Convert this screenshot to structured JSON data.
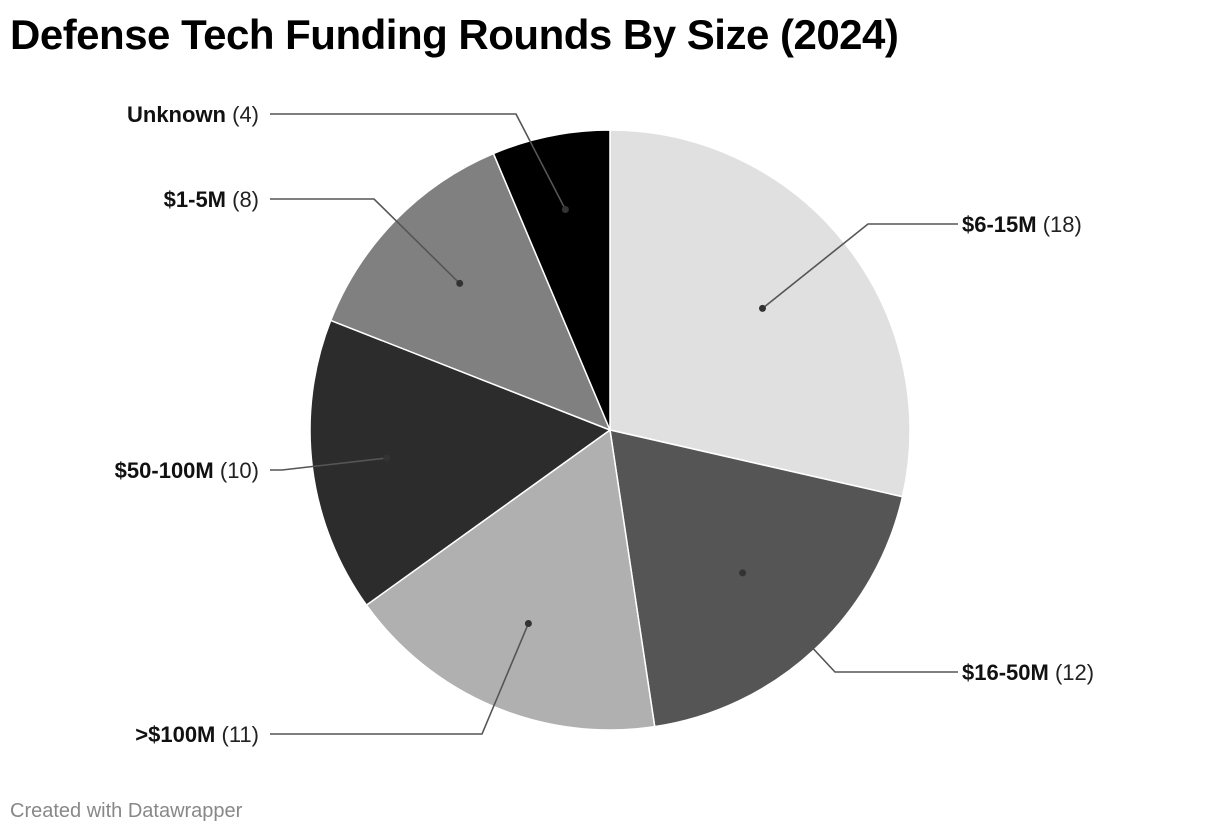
{
  "title": "Defense Tech Funding Rounds By Size (2024)",
  "footer": "Created with Datawrapper",
  "chart_data": {
    "type": "pie",
    "title": "Defense Tech Funding Rounds By Size (2024)",
    "start": "12 o'clock, clockwise",
    "slices": [
      {
        "label": "$6-15M",
        "value": 18,
        "color": "#e0e0e0",
        "count_text": "(18)"
      },
      {
        "label": "$16-50M",
        "value": 12,
        "color": "#555555",
        "count_text": "(12)"
      },
      {
        "label": ">$100M",
        "value": 11,
        "color": "#b0b0b0",
        "count_text": "(11)"
      },
      {
        "label": "$50-100M",
        "value": 10,
        "color": "#2c2c2c",
        "count_text": "(10)"
      },
      {
        "label": "$1-5M",
        "value": 8,
        "color": "#808080",
        "count_text": "(8)"
      },
      {
        "label": "Unknown",
        "value": 4,
        "color": "#000000",
        "count_text": "(4)"
      }
    ],
    "label_placement": "outside with leader lines"
  }
}
